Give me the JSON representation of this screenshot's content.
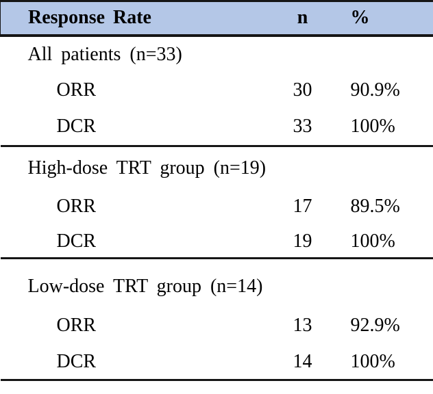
{
  "figure": {
    "header": {
      "response_rate": "Response Rate",
      "n": "n",
      "percent": "%"
    },
    "sections": [
      {
        "label": "All patients (n=33)",
        "rows": [
          {
            "label": "ORR",
            "n": "30",
            "percent": "90.9%"
          },
          {
            "label": "DCR",
            "n": "33",
            "percent": "100%"
          }
        ]
      },
      {
        "label": "High-dose TRT group (n=19)",
        "rows": [
          {
            "label": "ORR",
            "n": "17",
            "percent": "89.5%"
          },
          {
            "label": "DCR",
            "n": "19",
            "percent": "100%"
          }
        ]
      },
      {
        "label": "Low-dose TRT group (n=14)",
        "rows": [
          {
            "label": "ORR",
            "n": "13",
            "percent": "92.9%"
          },
          {
            "label": "DCR",
            "n": "14",
            "percent": "100%"
          }
        ]
      }
    ],
    "colors": {
      "header_bg": "#b4c7e7",
      "rule": "#161616",
      "text": "#000000"
    }
  },
  "chart_data": {
    "type": "table",
    "title": "Response Rate",
    "columns": [
      "Response Rate",
      "n",
      "%"
    ],
    "rows": [
      [
        "All patients (n=33)",
        "",
        ""
      ],
      [
        "ORR",
        "30",
        "90.9%"
      ],
      [
        "DCR",
        "33",
        "100%"
      ],
      [
        "High-dose TRT group (n=19)",
        "",
        ""
      ],
      [
        "ORR",
        "17",
        "89.5%"
      ],
      [
        "DCR",
        "19",
        "100%"
      ],
      [
        "Low-dose TRT group (n=14)",
        "",
        ""
      ],
      [
        "ORR",
        "13",
        "92.9%"
      ],
      [
        "DCR",
        "14",
        "100%"
      ]
    ]
  }
}
